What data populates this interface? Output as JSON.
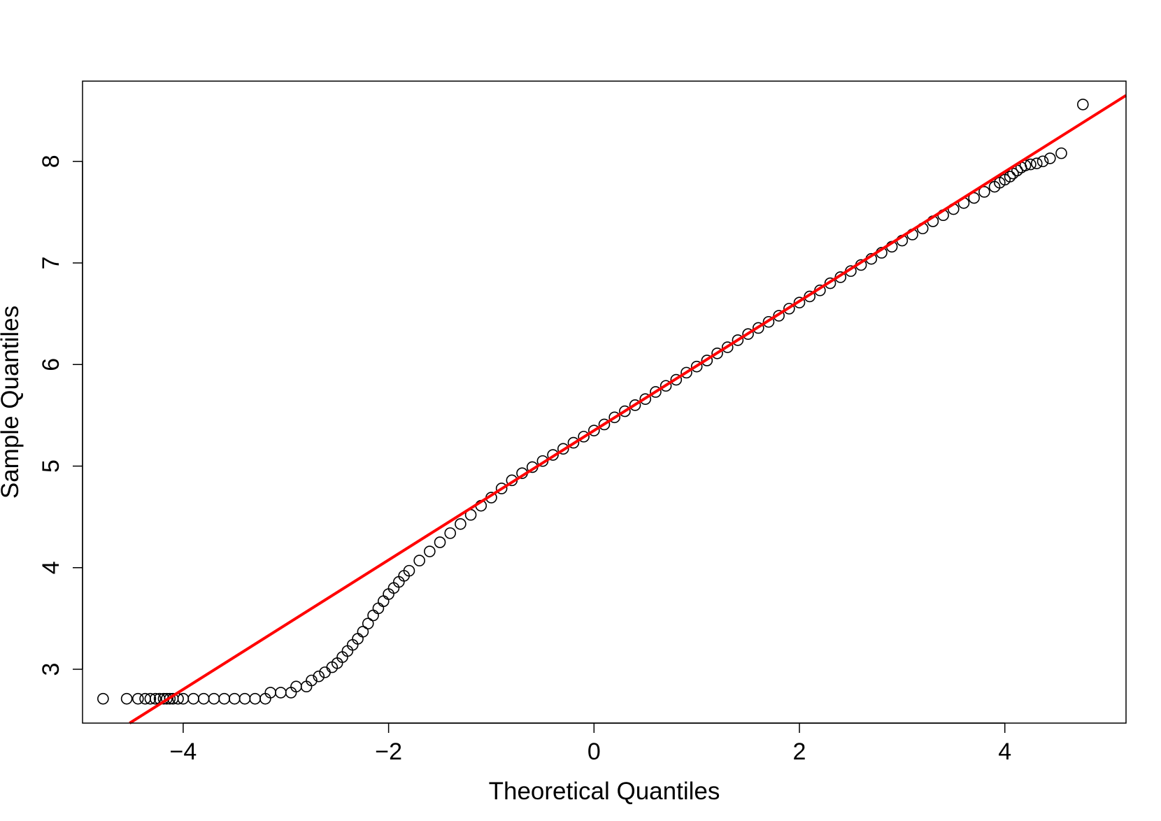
{
  "chart_data": {
    "type": "scatter",
    "title": "",
    "xlabel": "Theoretical Quantiles",
    "ylabel": "Sample Quantiles",
    "xlim": [
      -4.98,
      5.18
    ],
    "ylim": [
      2.47,
      8.79
    ],
    "x_ticks": [
      -4,
      -2,
      0,
      2,
      4
    ],
    "x_tick_labels": [
      "−4",
      "−2",
      "0",
      "2",
      "4"
    ],
    "y_ticks": [
      3,
      4,
      5,
      6,
      7,
      8
    ],
    "y_tick_labels": [
      "3",
      "4",
      "5",
      "6",
      "7",
      "8"
    ],
    "grid": false,
    "legend": "none",
    "point_style": "open circle",
    "point_color": "#000000",
    "reference_line": {
      "color": "#ff0000",
      "slope": 0.637,
      "intercept": 5.35
    },
    "series": [
      {
        "points": [
          [
            -4.78,
            2.71
          ],
          [
            -4.55,
            2.71
          ],
          [
            -4.44,
            2.71
          ],
          [
            -4.37,
            2.71
          ],
          [
            -4.32,
            2.71
          ],
          [
            -4.27,
            2.71
          ],
          [
            -4.23,
            2.71
          ],
          [
            -4.19,
            2.71
          ],
          [
            -4.16,
            2.71
          ],
          [
            -4.13,
            2.71
          ],
          [
            -4.1,
            2.71
          ],
          [
            -4.05,
            2.71
          ],
          [
            -4.0,
            2.71
          ],
          [
            -3.9,
            2.71
          ],
          [
            -3.8,
            2.71
          ],
          [
            -3.7,
            2.71
          ],
          [
            -3.6,
            2.71
          ],
          [
            -3.5,
            2.71
          ],
          [
            -3.4,
            2.71
          ],
          [
            -3.3,
            2.71
          ],
          [
            -3.2,
            2.71
          ],
          [
            -3.15,
            2.77
          ],
          [
            -3.05,
            2.77
          ],
          [
            -2.95,
            2.77
          ],
          [
            -2.9,
            2.83
          ],
          [
            -2.8,
            2.83
          ],
          [
            -2.75,
            2.89
          ],
          [
            -2.68,
            2.93
          ],
          [
            -2.62,
            2.97
          ],
          [
            -2.55,
            3.02
          ],
          [
            -2.5,
            3.06
          ],
          [
            -2.45,
            3.12
          ],
          [
            -2.4,
            3.18
          ],
          [
            -2.35,
            3.24
          ],
          [
            -2.3,
            3.3
          ],
          [
            -2.25,
            3.37
          ],
          [
            -2.2,
            3.45
          ],
          [
            -2.15,
            3.53
          ],
          [
            -2.1,
            3.6
          ],
          [
            -2.05,
            3.67
          ],
          [
            -2.0,
            3.74
          ],
          [
            -1.95,
            3.8
          ],
          [
            -1.9,
            3.86
          ],
          [
            -1.85,
            3.92
          ],
          [
            -1.8,
            3.97
          ],
          [
            -1.7,
            4.07
          ],
          [
            -1.6,
            4.16
          ],
          [
            -1.5,
            4.25
          ],
          [
            -1.4,
            4.34
          ],
          [
            -1.3,
            4.43
          ],
          [
            -1.2,
            4.52
          ],
          [
            -1.1,
            4.61
          ],
          [
            -1.0,
            4.69
          ],
          [
            -0.9,
            4.78
          ],
          [
            -0.8,
            4.86
          ],
          [
            -0.7,
            4.93
          ],
          [
            -0.6,
            4.99
          ],
          [
            -0.5,
            5.05
          ],
          [
            -0.4,
            5.11
          ],
          [
            -0.3,
            5.17
          ],
          [
            -0.2,
            5.23
          ],
          [
            -0.1,
            5.29
          ],
          [
            0.0,
            5.35
          ],
          [
            0.1,
            5.41
          ],
          [
            0.2,
            5.48
          ],
          [
            0.3,
            5.54
          ],
          [
            0.4,
            5.6
          ],
          [
            0.5,
            5.66
          ],
          [
            0.6,
            5.73
          ],
          [
            0.7,
            5.79
          ],
          [
            0.8,
            5.85
          ],
          [
            0.9,
            5.92
          ],
          [
            1.0,
            5.98
          ],
          [
            1.1,
            6.04
          ],
          [
            1.2,
            6.11
          ],
          [
            1.3,
            6.17
          ],
          [
            1.4,
            6.24
          ],
          [
            1.5,
            6.3
          ],
          [
            1.6,
            6.36
          ],
          [
            1.7,
            6.42
          ],
          [
            1.8,
            6.48
          ],
          [
            1.9,
            6.55
          ],
          [
            2.0,
            6.61
          ],
          [
            2.1,
            6.67
          ],
          [
            2.2,
            6.73
          ],
          [
            2.3,
            6.8
          ],
          [
            2.4,
            6.86
          ],
          [
            2.5,
            6.92
          ],
          [
            2.6,
            6.98
          ],
          [
            2.7,
            7.04
          ],
          [
            2.8,
            7.1
          ],
          [
            2.9,
            7.16
          ],
          [
            3.0,
            7.22
          ],
          [
            3.1,
            7.28
          ],
          [
            3.2,
            7.34
          ],
          [
            3.3,
            7.41
          ],
          [
            3.4,
            7.47
          ],
          [
            3.5,
            7.53
          ],
          [
            3.6,
            7.59
          ],
          [
            3.7,
            7.64
          ],
          [
            3.8,
            7.7
          ],
          [
            3.9,
            7.75
          ],
          [
            3.95,
            7.79
          ],
          [
            4.0,
            7.82
          ],
          [
            4.05,
            7.85
          ],
          [
            4.08,
            7.88
          ],
          [
            4.12,
            7.91
          ],
          [
            4.16,
            7.94
          ],
          [
            4.2,
            7.96
          ],
          [
            4.25,
            7.97
          ],
          [
            4.31,
            7.98
          ],
          [
            4.37,
            8.0
          ],
          [
            4.44,
            8.03
          ],
          [
            4.55,
            8.08
          ],
          [
            4.76,
            8.56
          ]
        ]
      }
    ]
  }
}
